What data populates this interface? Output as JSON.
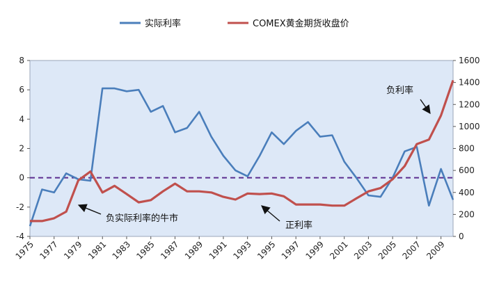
{
  "chart_data": {
    "type": "line",
    "title": "",
    "xlabel": "",
    "ylabel_left": "",
    "ylabel_right": "",
    "x": [
      1975,
      1976,
      1977,
      1978,
      1979,
      1980,
      1981,
      1982,
      1983,
      1984,
      1985,
      1986,
      1987,
      1988,
      1989,
      1990,
      1991,
      1992,
      1993,
      1994,
      1995,
      1996,
      1997,
      1998,
      1999,
      2000,
      2001,
      2002,
      2003,
      2004,
      2005,
      2006,
      2007,
      2008,
      2009,
      2010
    ],
    "x_tick_labels": [
      "1975",
      "1977",
      "1979",
      "1981",
      "1983",
      "1985",
      "1987",
      "1989",
      "1991",
      "1993",
      "1995",
      "1997",
      "1999",
      "2001",
      "2003",
      "2005",
      "2007",
      "2009"
    ],
    "ylim_left": [
      -4,
      8
    ],
    "y_ticks_left": [
      "-4",
      "-2",
      "0",
      "2",
      "4",
      "6",
      "8"
    ],
    "ylim_right": [
      0,
      1600
    ],
    "y_ticks_right": [
      "0",
      "200",
      "400",
      "600",
      "800",
      "1000",
      "1200",
      "1400",
      "1600"
    ],
    "reference_line": {
      "axis": "left",
      "value": 0,
      "style": "dashed",
      "color": "#5b2c8f"
    },
    "plot_background": "#dde8f7",
    "legend_position": "top",
    "series": [
      {
        "name": "实际利率",
        "axis": "left",
        "color": "#4a7ebb",
        "values": [
          -3.3,
          -0.8,
          -1.0,
          0.3,
          -0.1,
          -0.2,
          6.1,
          6.1,
          5.9,
          6.0,
          4.5,
          4.9,
          3.1,
          3.4,
          4.5,
          2.8,
          1.5,
          0.5,
          0.1,
          1.5,
          3.1,
          2.3,
          3.2,
          3.8,
          2.8,
          2.9,
          1.1,
          0.0,
          -1.2,
          -1.3,
          0.0,
          1.8,
          2.1,
          -1.9,
          0.6,
          -1.5
        ]
      },
      {
        "name": "COMEX黄金期货收盘价",
        "axis": "right",
        "color": "#c0504d",
        "values": [
          140,
          140,
          165,
          225,
          510,
          590,
          400,
          460,
          385,
          310,
          330,
          410,
          480,
          410,
          410,
          400,
          360,
          335,
          390,
          385,
          390,
          365,
          290,
          290,
          290,
          280,
          280,
          345,
          410,
          440,
          520,
          640,
          840,
          880,
          1100,
          1420
        ]
      }
    ],
    "annotations": [
      {
        "text": "负实际利率的牛市"
      },
      {
        "text": "正利率"
      },
      {
        "text": "负利率"
      }
    ]
  }
}
